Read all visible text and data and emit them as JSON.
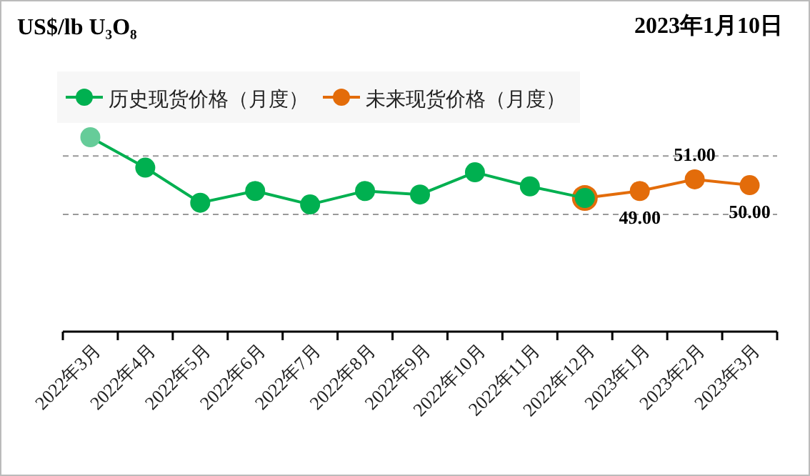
{
  "chart_data": {
    "type": "line",
    "title": "US$/lb U₃O₈",
    "subtitle": "2023年1月10日",
    "categories": [
      "2022年3月",
      "2022年4月",
      "2022年5月",
      "2022年6月",
      "2022年7月",
      "2022年8月",
      "2022年9月",
      "2022年10月",
      "2022年11月",
      "2022年12月",
      "2023年1月",
      "2023年2月",
      "2023年3月"
    ],
    "series": [
      {
        "name": "历史现货价格（月度）",
        "color": "#00b050",
        "colors": [
          "#66cc99",
          "#00b050",
          "#00b050",
          "#00b050",
          "#00b050",
          "#00b050",
          "#00b050",
          "#00b050",
          "#00b050",
          "#00b050",
          null,
          null,
          null
        ],
        "values": [
          58.2,
          53.0,
          47.0,
          49.0,
          46.7,
          49.0,
          48.4,
          52.2,
          49.8,
          47.8,
          null,
          null,
          null
        ]
      },
      {
        "name": "未来现货价格（月度）",
        "color": "#e36c0a",
        "values": [
          null,
          null,
          null,
          null,
          null,
          null,
          null,
          null,
          null,
          47.8,
          49.0,
          51.0,
          50.0
        ],
        "value_labels": [
          null,
          null,
          null,
          null,
          null,
          null,
          null,
          null,
          null,
          null,
          "49.00",
          "51.00",
          "50.00"
        ]
      }
    ],
    "ref_lines": [
      {
        "axis": "y",
        "value": 55,
        "color": "#999999",
        "line_style": "dashed"
      },
      {
        "axis": "y",
        "value": 45,
        "color": "#999999",
        "line_style": "dashed"
      }
    ],
    "legend": "top left",
    "marker": "circle",
    "tick_labels": "x"
  }
}
